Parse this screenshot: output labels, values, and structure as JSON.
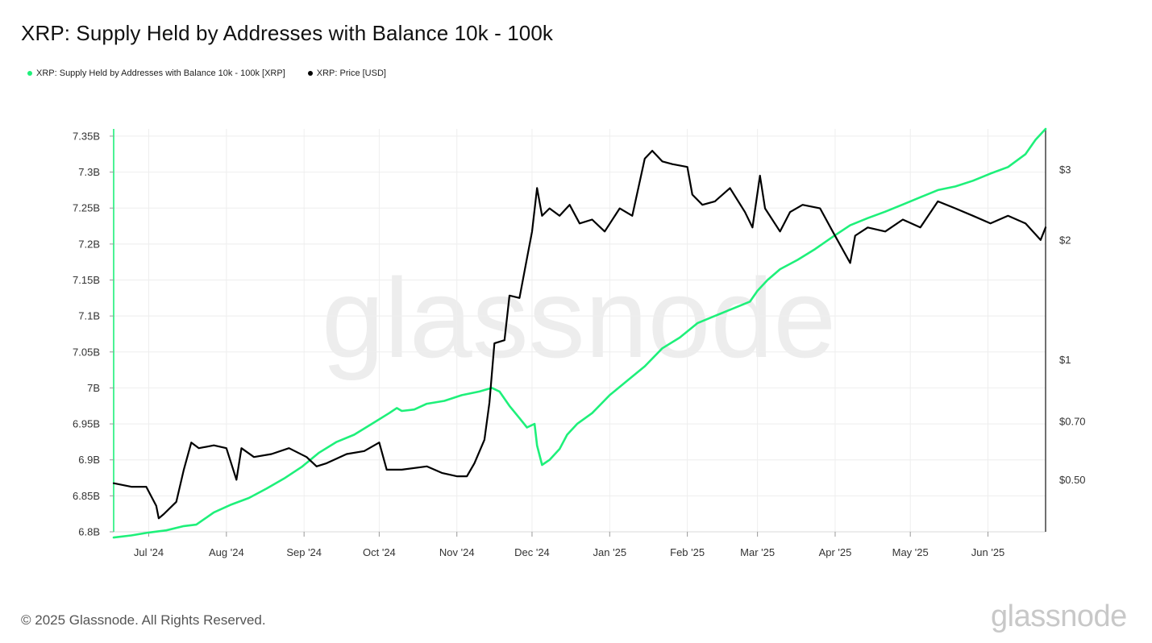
{
  "chart_data": {
    "type": "line",
    "title": "XRP: Supply Held by Addresses with Balance 10k - 100k",
    "xlabel": "",
    "ylabel": "",
    "x_range": [
      "2024-06-17",
      "2025-06-24"
    ],
    "x_ticks": [
      {
        "label": "Jul '24",
        "date": "2024-07-01"
      },
      {
        "label": "Aug '24",
        "date": "2024-08-01"
      },
      {
        "label": "Sep '24",
        "date": "2024-09-01"
      },
      {
        "label": "Oct '24",
        "date": "2024-10-01"
      },
      {
        "label": "Nov '24",
        "date": "2024-11-01"
      },
      {
        "label": "Dec '24",
        "date": "2024-12-01"
      },
      {
        "label": "Jan '25",
        "date": "2025-01-01"
      },
      {
        "label": "Feb '25",
        "date": "2025-02-01"
      },
      {
        "label": "Mar '25",
        "date": "2025-03-01"
      },
      {
        "label": "Apr '25",
        "date": "2025-04-01"
      },
      {
        "label": "May '25",
        "date": "2025-05-01"
      },
      {
        "label": "Jun '25",
        "date": "2025-06-01"
      }
    ],
    "y_left": {
      "ylim": [
        6.8,
        7.36
      ],
      "ticks": [
        {
          "label": "6.8B",
          "value": 6.8
        },
        {
          "label": "6.85B",
          "value": 6.85
        },
        {
          "label": "6.9B",
          "value": 6.9
        },
        {
          "label": "6.95B",
          "value": 6.95
        },
        {
          "label": "7B",
          "value": 7.0
        },
        {
          "label": "7.05B",
          "value": 7.05
        },
        {
          "label": "7.1B",
          "value": 7.1
        },
        {
          "label": "7.15B",
          "value": 7.15
        },
        {
          "label": "7.2B",
          "value": 7.2
        },
        {
          "label": "7.25B",
          "value": 7.25
        },
        {
          "label": "7.3B",
          "value": 7.3
        },
        {
          "label": "7.35B",
          "value": 7.35
        }
      ]
    },
    "y_right": {
      "scale": "log",
      "ylim": [
        0.37,
        3.8
      ],
      "ticks": [
        {
          "label": "$0.50",
          "value": 0.5
        },
        {
          "label": "$0.70",
          "value": 0.7
        },
        {
          "label": "$1",
          "value": 1
        },
        {
          "label": "$2",
          "value": 2
        },
        {
          "label": "$3",
          "value": 3
        }
      ]
    },
    "grid": true,
    "legend_position": "top-left",
    "series": [
      {
        "name": "XRP: Supply Held by Addresses with Balance 10k - 100k [XRP]",
        "axis": "left",
        "unit": "B XRP",
        "color": "#1ef07a",
        "points": [
          [
            "2024-06-17",
            6.792
          ],
          [
            "2024-06-24",
            6.795
          ],
          [
            "2024-07-01",
            6.799
          ],
          [
            "2024-07-08",
            6.802
          ],
          [
            "2024-07-15",
            6.808
          ],
          [
            "2024-07-20",
            6.81
          ],
          [
            "2024-07-27",
            6.827
          ],
          [
            "2024-08-03",
            6.838
          ],
          [
            "2024-08-10",
            6.847
          ],
          [
            "2024-08-17",
            6.86
          ],
          [
            "2024-08-24",
            6.874
          ],
          [
            "2024-08-31",
            6.89
          ],
          [
            "2024-09-07",
            6.91
          ],
          [
            "2024-09-14",
            6.925
          ],
          [
            "2024-09-21",
            6.935
          ],
          [
            "2024-09-28",
            6.95
          ],
          [
            "2024-10-05",
            6.965
          ],
          [
            "2024-10-08",
            6.972
          ],
          [
            "2024-10-10",
            6.968
          ],
          [
            "2024-10-15",
            6.97
          ],
          [
            "2024-10-20",
            6.978
          ],
          [
            "2024-10-27",
            6.982
          ],
          [
            "2024-11-03",
            6.99
          ],
          [
            "2024-11-10",
            6.995
          ],
          [
            "2024-11-15",
            7.0
          ],
          [
            "2024-11-18",
            6.995
          ],
          [
            "2024-11-22",
            6.975
          ],
          [
            "2024-11-26",
            6.958
          ],
          [
            "2024-11-29",
            6.945
          ],
          [
            "2024-12-02",
            6.95
          ],
          [
            "2024-12-03",
            6.92
          ],
          [
            "2024-12-05",
            6.893
          ],
          [
            "2024-12-08",
            6.9
          ],
          [
            "2024-12-12",
            6.915
          ],
          [
            "2024-12-15",
            6.935
          ],
          [
            "2024-12-19",
            6.95
          ],
          [
            "2024-12-25",
            6.965
          ],
          [
            "2025-01-01",
            6.99
          ],
          [
            "2025-01-08",
            7.01
          ],
          [
            "2025-01-15",
            7.03
          ],
          [
            "2025-01-22",
            7.055
          ],
          [
            "2025-01-29",
            7.07
          ],
          [
            "2025-02-05",
            7.09
          ],
          [
            "2025-02-12",
            7.1
          ],
          [
            "2025-02-19",
            7.11
          ],
          [
            "2025-02-26",
            7.12
          ],
          [
            "2025-03-01",
            7.135
          ],
          [
            "2025-03-05",
            7.15
          ],
          [
            "2025-03-10",
            7.165
          ],
          [
            "2025-03-17",
            7.178
          ],
          [
            "2025-03-24",
            7.193
          ],
          [
            "2025-03-31",
            7.21
          ],
          [
            "2025-04-07",
            7.226
          ],
          [
            "2025-04-14",
            7.236
          ],
          [
            "2025-04-21",
            7.245
          ],
          [
            "2025-04-28",
            7.255
          ],
          [
            "2025-05-05",
            7.265
          ],
          [
            "2025-05-12",
            7.275
          ],
          [
            "2025-05-19",
            7.28
          ],
          [
            "2025-05-26",
            7.288
          ],
          [
            "2025-06-02",
            7.298
          ],
          [
            "2025-06-09",
            7.307
          ],
          [
            "2025-06-16",
            7.325
          ],
          [
            "2025-06-20",
            7.345
          ],
          [
            "2025-06-24",
            7.36
          ]
        ]
      },
      {
        "name": "XRP: Price [USD]",
        "axis": "right",
        "unit": "USD",
        "color": "#000000",
        "points": [
          [
            "2024-06-17",
            0.49
          ],
          [
            "2024-06-24",
            0.48
          ],
          [
            "2024-06-30",
            0.48
          ],
          [
            "2024-07-04",
            0.43
          ],
          [
            "2024-07-05",
            0.4
          ],
          [
            "2024-07-07",
            0.41
          ],
          [
            "2024-07-12",
            0.44
          ],
          [
            "2024-07-15",
            0.53
          ],
          [
            "2024-07-18",
            0.62
          ],
          [
            "2024-07-21",
            0.6
          ],
          [
            "2024-07-27",
            0.61
          ],
          [
            "2024-08-01",
            0.6
          ],
          [
            "2024-08-05",
            0.5
          ],
          [
            "2024-08-07",
            0.6
          ],
          [
            "2024-08-12",
            0.57
          ],
          [
            "2024-08-19",
            0.58
          ],
          [
            "2024-08-26",
            0.6
          ],
          [
            "2024-09-02",
            0.57
          ],
          [
            "2024-09-06",
            0.54
          ],
          [
            "2024-09-10",
            0.55
          ],
          [
            "2024-09-18",
            0.58
          ],
          [
            "2024-09-25",
            0.59
          ],
          [
            "2024-10-01",
            0.62
          ],
          [
            "2024-10-04",
            0.53
          ],
          [
            "2024-10-10",
            0.53
          ],
          [
            "2024-10-20",
            0.54
          ],
          [
            "2024-10-26",
            0.52
          ],
          [
            "2024-11-01",
            0.51
          ],
          [
            "2024-11-05",
            0.51
          ],
          [
            "2024-11-08",
            0.55
          ],
          [
            "2024-11-12",
            0.63
          ],
          [
            "2024-11-14",
            0.78
          ],
          [
            "2024-11-16",
            1.1
          ],
          [
            "2024-11-20",
            1.12
          ],
          [
            "2024-11-22",
            1.45
          ],
          [
            "2024-11-26",
            1.43
          ],
          [
            "2024-11-29",
            1.8
          ],
          [
            "2024-12-01",
            2.1
          ],
          [
            "2024-12-03",
            2.7
          ],
          [
            "2024-12-05",
            2.3
          ],
          [
            "2024-12-08",
            2.4
          ],
          [
            "2024-12-12",
            2.3
          ],
          [
            "2024-12-16",
            2.45
          ],
          [
            "2024-12-20",
            2.2
          ],
          [
            "2024-12-25",
            2.25
          ],
          [
            "2024-12-30",
            2.1
          ],
          [
            "2025-01-05",
            2.4
          ],
          [
            "2025-01-10",
            2.3
          ],
          [
            "2025-01-15",
            3.2
          ],
          [
            "2025-01-18",
            3.35
          ],
          [
            "2025-01-22",
            3.15
          ],
          [
            "2025-01-26",
            3.1
          ],
          [
            "2025-02-01",
            3.05
          ],
          [
            "2025-02-03",
            2.6
          ],
          [
            "2025-02-07",
            2.45
          ],
          [
            "2025-02-12",
            2.5
          ],
          [
            "2025-02-18",
            2.7
          ],
          [
            "2025-02-24",
            2.35
          ],
          [
            "2025-02-27",
            2.15
          ],
          [
            "2025-03-02",
            2.9
          ],
          [
            "2025-03-04",
            2.4
          ],
          [
            "2025-03-10",
            2.1
          ],
          [
            "2025-03-14",
            2.35
          ],
          [
            "2025-03-19",
            2.45
          ],
          [
            "2025-03-26",
            2.4
          ],
          [
            "2025-03-31",
            2.1
          ],
          [
            "2025-04-07",
            1.75
          ],
          [
            "2025-04-09",
            2.05
          ],
          [
            "2025-04-14",
            2.15
          ],
          [
            "2025-04-21",
            2.1
          ],
          [
            "2025-04-28",
            2.25
          ],
          [
            "2025-05-05",
            2.15
          ],
          [
            "2025-05-12",
            2.5
          ],
          [
            "2025-05-19",
            2.4
          ],
          [
            "2025-05-26",
            2.3
          ],
          [
            "2025-06-02",
            2.2
          ],
          [
            "2025-06-09",
            2.3
          ],
          [
            "2025-06-16",
            2.2
          ],
          [
            "2025-06-22",
            2.0
          ],
          [
            "2025-06-24",
            2.15
          ]
        ]
      }
    ]
  },
  "legend": {
    "items": [
      {
        "label": "XRP: Supply Held by Addresses with Balance 10k - 100k [XRP]",
        "color": "#1ef07a"
      },
      {
        "label": "XRP: Price [USD]",
        "color": "#000000"
      }
    ]
  },
  "watermark": {
    "text": "glassnode"
  },
  "footer": {
    "copyright": "© 2025 Glassnode. All Rights Reserved.",
    "logo": "glassnode"
  }
}
